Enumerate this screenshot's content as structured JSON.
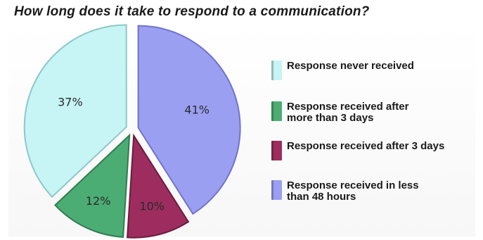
{
  "title": "How long does it take to respond to a communication?",
  "chart_data": {
    "type": "pie",
    "title": "How long does it take to respond to a communication?",
    "slices": [
      {
        "label": "Response received in less than 48 hours",
        "value": 41,
        "display": "41%",
        "color": "#9b9ff2",
        "stroke": "#6f73c9"
      },
      {
        "label": "Response received after 3 days",
        "value": 10,
        "display": "10%",
        "color": "#9c2d5e",
        "stroke": "#6c1c3e"
      },
      {
        "label": "Response received after more than 3 days",
        "value": 12,
        "display": "12%",
        "color": "#4cad74",
        "stroke": "#2f7d50"
      },
      {
        "label": "Response never received",
        "value": 37,
        "display": "37%",
        "color": "#c7f4f4",
        "stroke": "#8cc8c8"
      }
    ],
    "legend": {
      "position": "right",
      "items": [
        {
          "label": "Response never received",
          "color": "#c7f4f4"
        },
        {
          "label": "Response received after more than 3 days",
          "color": "#4cad74"
        },
        {
          "label": "Response received after 3 days",
          "color": "#9c2d5e"
        },
        {
          "label": "Response received in less than 48 hours",
          "color": "#9b9ff2"
        }
      ]
    },
    "legend_text": [
      "Response never received",
      "Response received after\nmore than 3 days",
      "Response received after 3 days",
      "Response received in less\nthan 48 hours"
    ]
  }
}
